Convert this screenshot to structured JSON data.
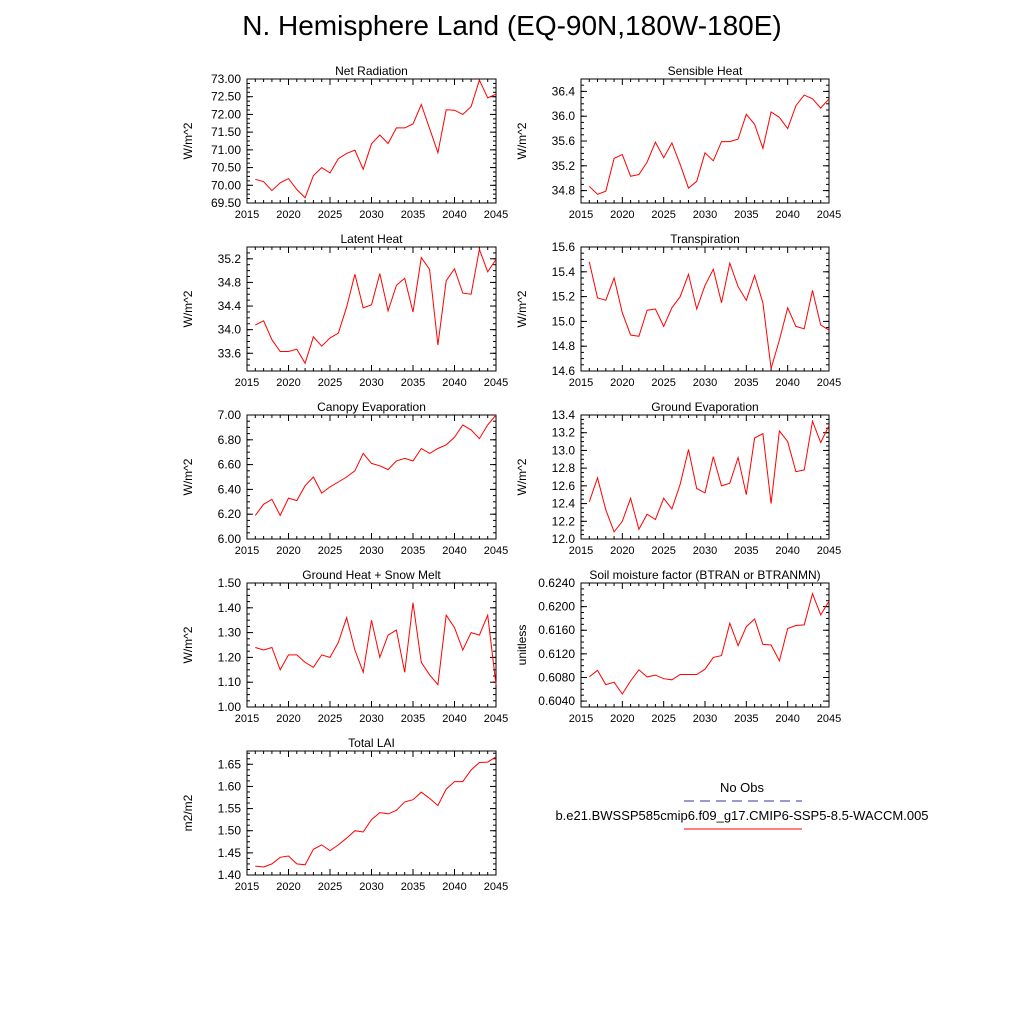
{
  "figure": {
    "title": "N. Hemisphere Land (EQ-90N,180W-180E)"
  },
  "legend": {
    "entries": [
      {
        "label": "No Obs",
        "color": "#3333aa",
        "style": "dashed"
      },
      {
        "label": "b.e21.BWSSP585cmip6.f09_g17.CMIP6-SSP5-8.5-WACCM.005",
        "color": "#ff0000",
        "style": "solid"
      }
    ]
  },
  "chart_data": [
    {
      "type": "line",
      "title": "Net Radiation",
      "ylabel": "W/m^2",
      "xlim": [
        2015,
        2045
      ],
      "ylim": [
        69.5,
        73.0
      ],
      "xticks": [
        2015,
        2020,
        2025,
        2030,
        2035,
        2040,
        2045
      ],
      "yticks": [
        69.5,
        70.0,
        70.5,
        71.0,
        71.5,
        72.0,
        72.5,
        73.0
      ],
      "ytick_labels": [
        "69.50",
        "70.00",
        "70.50",
        "71.00",
        "71.50",
        "72.00",
        "72.50",
        "73.00"
      ],
      "x": [
        2016,
        2017,
        2018,
        2019,
        2020,
        2021,
        2022,
        2023,
        2024,
        2025,
        2026,
        2027,
        2028,
        2029,
        2030,
        2031,
        2032,
        2033,
        2034,
        2035,
        2036,
        2037,
        2038,
        2039,
        2040,
        2041,
        2042,
        2043,
        2044,
        2045
      ],
      "series": [
        {
          "color": "#ff0000",
          "values": [
            70.17,
            70.1,
            69.85,
            70.07,
            70.19,
            69.88,
            69.65,
            70.27,
            70.5,
            70.35,
            70.75,
            70.9,
            70.99,
            70.45,
            71.17,
            71.42,
            71.18,
            71.62,
            71.62,
            71.73,
            72.28,
            71.6,
            70.92,
            72.13,
            72.12,
            72.0,
            72.22,
            72.97,
            72.47,
            72.57
          ]
        }
      ]
    },
    {
      "type": "line",
      "title": "Sensible Heat",
      "ylabel": "W/m^2",
      "xlim": [
        2015,
        2045
      ],
      "ylim": [
        34.6,
        36.6
      ],
      "xticks": [
        2015,
        2020,
        2025,
        2030,
        2035,
        2040,
        2045
      ],
      "yticks": [
        34.8,
        35.2,
        35.6,
        36.0,
        36.4
      ],
      "ytick_labels": [
        "34.8",
        "35.2",
        "35.6",
        "36.0",
        "36.4"
      ],
      "x": [
        2016,
        2017,
        2018,
        2019,
        2020,
        2021,
        2022,
        2023,
        2024,
        2025,
        2026,
        2027,
        2028,
        2029,
        2030,
        2031,
        2032,
        2033,
        2034,
        2035,
        2036,
        2037,
        2038,
        2039,
        2040,
        2041,
        2042,
        2043,
        2044,
        2045
      ],
      "series": [
        {
          "color": "#ff0000",
          "values": [
            34.87,
            34.74,
            34.79,
            35.32,
            35.38,
            35.03,
            35.06,
            35.26,
            35.58,
            35.33,
            35.57,
            35.22,
            34.84,
            34.95,
            35.41,
            35.28,
            35.59,
            35.59,
            35.63,
            36.03,
            35.87,
            35.48,
            36.07,
            35.98,
            35.8,
            36.17,
            36.34,
            36.28,
            36.13,
            36.28
          ]
        }
      ]
    },
    {
      "type": "line",
      "title": "Latent Heat",
      "ylabel": "W/m^2",
      "xlim": [
        2015,
        2045
      ],
      "ylim": [
        33.3,
        35.4
      ],
      "xticks": [
        2015,
        2020,
        2025,
        2030,
        2035,
        2040,
        2045
      ],
      "yticks": [
        33.6,
        34.0,
        34.4,
        34.8,
        35.2
      ],
      "ytick_labels": [
        "33.6",
        "34.0",
        "34.4",
        "34.8",
        "35.2"
      ],
      "x": [
        2016,
        2017,
        2018,
        2019,
        2020,
        2021,
        2022,
        2023,
        2024,
        2025,
        2026,
        2027,
        2028,
        2029,
        2030,
        2031,
        2032,
        2033,
        2034,
        2035,
        2036,
        2037,
        2038,
        2039,
        2040,
        2041,
        2042,
        2043,
        2044,
        2045
      ],
      "series": [
        {
          "color": "#ff0000",
          "values": [
            34.08,
            34.15,
            33.83,
            33.63,
            33.63,
            33.67,
            33.43,
            33.88,
            33.72,
            33.86,
            33.94,
            34.38,
            34.94,
            34.37,
            34.42,
            34.95,
            34.32,
            34.75,
            34.87,
            34.3,
            35.22,
            35.02,
            33.74,
            34.83,
            35.03,
            34.62,
            34.6,
            35.36,
            34.98,
            35.19
          ]
        }
      ]
    },
    {
      "type": "line",
      "title": "Transpiration",
      "ylabel": "W/m^2",
      "xlim": [
        2015,
        2045
      ],
      "ylim": [
        14.6,
        15.6
      ],
      "xticks": [
        2015,
        2020,
        2025,
        2030,
        2035,
        2040,
        2045
      ],
      "yticks": [
        14.6,
        14.8,
        15.0,
        15.2,
        15.4,
        15.6
      ],
      "ytick_labels": [
        "14.6",
        "14.8",
        "15.0",
        "15.2",
        "15.4",
        "15.6"
      ],
      "x": [
        2016,
        2017,
        2018,
        2019,
        2020,
        2021,
        2022,
        2023,
        2024,
        2025,
        2026,
        2027,
        2028,
        2029,
        2030,
        2031,
        2032,
        2033,
        2034,
        2035,
        2036,
        2037,
        2038,
        2039,
        2040,
        2041,
        2042,
        2043,
        2044,
        2045
      ],
      "series": [
        {
          "color": "#ff0000",
          "values": [
            15.48,
            15.19,
            15.17,
            15.35,
            15.07,
            14.89,
            14.88,
            15.09,
            15.1,
            14.96,
            15.11,
            15.2,
            15.38,
            15.1,
            15.29,
            15.42,
            15.15,
            15.47,
            15.28,
            15.17,
            15.37,
            15.15,
            14.62,
            14.85,
            15.11,
            14.96,
            14.94,
            15.25,
            14.97,
            14.93
          ]
        }
      ]
    },
    {
      "type": "line",
      "title": "Canopy Evaporation",
      "ylabel": "W/m^2",
      "xlim": [
        2015,
        2045
      ],
      "ylim": [
        6.0,
        7.0
      ],
      "xticks": [
        2015,
        2020,
        2025,
        2030,
        2035,
        2040,
        2045
      ],
      "yticks": [
        6.0,
        6.2,
        6.4,
        6.6,
        6.8,
        7.0
      ],
      "ytick_labels": [
        "6.00",
        "6.20",
        "6.40",
        "6.60",
        "6.80",
        "7.00"
      ],
      "x": [
        2016,
        2017,
        2018,
        2019,
        2020,
        2021,
        2022,
        2023,
        2024,
        2025,
        2026,
        2027,
        2028,
        2029,
        2030,
        2031,
        2032,
        2033,
        2034,
        2035,
        2036,
        2037,
        2038,
        2039,
        2040,
        2041,
        2042,
        2043,
        2044,
        2045
      ],
      "series": [
        {
          "color": "#ff0000",
          "values": [
            6.19,
            6.28,
            6.32,
            6.19,
            6.33,
            6.31,
            6.43,
            6.5,
            6.37,
            6.42,
            6.46,
            6.5,
            6.55,
            6.69,
            6.61,
            6.59,
            6.56,
            6.63,
            6.65,
            6.63,
            6.73,
            6.69,
            6.73,
            6.76,
            6.82,
            6.92,
            6.88,
            6.81,
            6.92,
            7.0
          ]
        }
      ]
    },
    {
      "type": "line",
      "title": "Ground Evaporation",
      "ylabel": "W/m^2",
      "xlim": [
        2015,
        2045
      ],
      "ylim": [
        12.0,
        13.4
      ],
      "xticks": [
        2015,
        2020,
        2025,
        2030,
        2035,
        2040,
        2045
      ],
      "yticks": [
        12.0,
        12.2,
        12.4,
        12.6,
        12.8,
        13.0,
        13.2,
        13.4
      ],
      "ytick_labels": [
        "12.0",
        "12.2",
        "12.4",
        "12.6",
        "12.8",
        "13.0",
        "13.2",
        "13.4"
      ],
      "x": [
        2016,
        2017,
        2018,
        2019,
        2020,
        2021,
        2022,
        2023,
        2024,
        2025,
        2026,
        2027,
        2028,
        2029,
        2030,
        2031,
        2032,
        2033,
        2034,
        2035,
        2036,
        2037,
        2038,
        2039,
        2040,
        2041,
        2042,
        2043,
        2044,
        2045
      ],
      "series": [
        {
          "color": "#ff0000",
          "values": [
            12.42,
            12.69,
            12.33,
            12.08,
            12.2,
            12.46,
            12.11,
            12.28,
            12.22,
            12.46,
            12.34,
            12.62,
            13.01,
            12.57,
            12.52,
            12.93,
            12.6,
            12.63,
            12.92,
            12.5,
            13.14,
            13.19,
            12.4,
            13.22,
            13.1,
            12.76,
            12.78,
            13.33,
            13.09,
            13.28
          ]
        }
      ]
    },
    {
      "type": "line",
      "title": "Ground Heat + Snow Melt",
      "ylabel": "W/m^2",
      "xlim": [
        2015,
        2045
      ],
      "ylim": [
        1.0,
        1.5
      ],
      "xticks": [
        2015,
        2020,
        2025,
        2030,
        2035,
        2040,
        2045
      ],
      "yticks": [
        1.0,
        1.1,
        1.2,
        1.3,
        1.4,
        1.5
      ],
      "ytick_labels": [
        "1.00",
        "1.10",
        "1.20",
        "1.30",
        "1.40",
        "1.50"
      ],
      "x": [
        2016,
        2017,
        2018,
        2019,
        2020,
        2021,
        2022,
        2023,
        2024,
        2025,
        2026,
        2027,
        2028,
        2029,
        2030,
        2031,
        2032,
        2033,
        2034,
        2035,
        2036,
        2037,
        2038,
        2039,
        2040,
        2041,
        2042,
        2043,
        2044,
        2045
      ],
      "series": [
        {
          "color": "#ff0000",
          "values": [
            1.24,
            1.23,
            1.24,
            1.15,
            1.21,
            1.21,
            1.18,
            1.16,
            1.21,
            1.2,
            1.26,
            1.36,
            1.23,
            1.14,
            1.35,
            1.2,
            1.29,
            1.31,
            1.14,
            1.42,
            1.18,
            1.13,
            1.09,
            1.37,
            1.32,
            1.23,
            1.3,
            1.29,
            1.37,
            1.09
          ]
        }
      ]
    },
    {
      "type": "line",
      "title": "Soil moisture factor (BTRAN or BTRANMN)",
      "ylabel": "unitless",
      "xlim": [
        2015,
        2045
      ],
      "ylim": [
        0.603,
        0.624
      ],
      "xticks": [
        2015,
        2020,
        2025,
        2030,
        2035,
        2040,
        2045
      ],
      "yticks": [
        0.604,
        0.608,
        0.612,
        0.616,
        0.62,
        0.624
      ],
      "ytick_labels": [
        "0.6040",
        "0.6080",
        "0.6120",
        "0.6160",
        "0.6200",
        "0.6240"
      ],
      "x": [
        2016,
        2017,
        2018,
        2019,
        2020,
        2021,
        2022,
        2023,
        2024,
        2025,
        2026,
        2027,
        2028,
        2029,
        2030,
        2031,
        2032,
        2033,
        2034,
        2035,
        2036,
        2037,
        2038,
        2039,
        2040,
        2041,
        2042,
        2043,
        2044,
        2045
      ],
      "series": [
        {
          "color": "#ff0000",
          "values": [
            0.6081,
            0.6092,
            0.6068,
            0.6072,
            0.6052,
            0.6074,
            0.6093,
            0.6081,
            0.6084,
            0.6078,
            0.6076,
            0.6085,
            0.6085,
            0.6085,
            0.6094,
            0.6114,
            0.6117,
            0.6172,
            0.6134,
            0.6166,
            0.6179,
            0.6136,
            0.6135,
            0.6108,
            0.6163,
            0.6168,
            0.6169,
            0.6222,
            0.6186,
            0.6209
          ]
        }
      ]
    },
    {
      "type": "line",
      "title": "Total LAI",
      "ylabel": "m2/m2",
      "xlim": [
        2015,
        2045
      ],
      "ylim": [
        1.4,
        1.68
      ],
      "xticks": [
        2015,
        2020,
        2025,
        2030,
        2035,
        2040,
        2045
      ],
      "yticks": [
        1.4,
        1.45,
        1.5,
        1.55,
        1.6,
        1.65
      ],
      "ytick_labels": [
        "1.40",
        "1.45",
        "1.50",
        "1.55",
        "1.60",
        "1.65"
      ],
      "x": [
        2016,
        2017,
        2018,
        2019,
        2020,
        2021,
        2022,
        2023,
        2024,
        2025,
        2026,
        2027,
        2028,
        2029,
        2030,
        2031,
        2032,
        2033,
        2034,
        2035,
        2036,
        2037,
        2038,
        2039,
        2040,
        2041,
        2042,
        2043,
        2044,
        2045
      ],
      "series": [
        {
          "color": "#ff0000",
          "values": [
            1.42,
            1.418,
            1.425,
            1.44,
            1.443,
            1.425,
            1.423,
            1.458,
            1.468,
            1.455,
            1.468,
            1.483,
            1.5,
            1.497,
            1.525,
            1.541,
            1.538,
            1.546,
            1.565,
            1.57,
            1.587,
            1.573,
            1.557,
            1.594,
            1.611,
            1.611,
            1.637,
            1.654,
            1.655,
            1.667
          ]
        }
      ]
    }
  ]
}
